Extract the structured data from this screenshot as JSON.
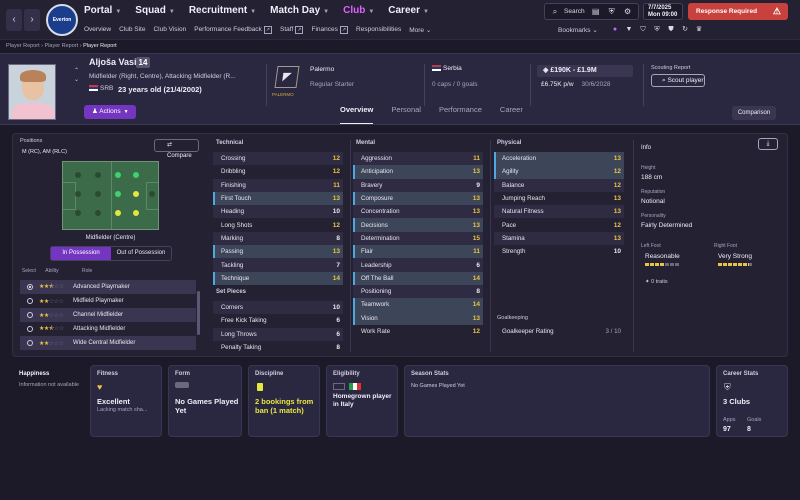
{
  "nav": {
    "menu": [
      {
        "label": "Portal",
        "active": false
      },
      {
        "label": "Squad",
        "active": false
      },
      {
        "label": "Recruitment",
        "active": false
      },
      {
        "label": "Match Day",
        "active": false
      },
      {
        "label": "Club",
        "active": true
      },
      {
        "label": "Career",
        "active": false
      }
    ],
    "submenu": [
      "Overview",
      "Club Site",
      "Club Vision",
      "Performance Feedback",
      "Staff",
      "Finances",
      "Responsibilities",
      "More"
    ],
    "search_label": "Search",
    "date_line1": "7/7/2025",
    "date_line2": "Mon  09:00",
    "response_required": "Response Required",
    "bookmarks": "Bookmarks",
    "crest_text": "Everton"
  },
  "breadcrumb": [
    "Player Report",
    "Player Report",
    "Player Report"
  ],
  "player": {
    "name": "Aljoša Vasić",
    "number": "14",
    "positions": "Midfielder (Right, Centre), Attacking Midfielder (R...",
    "nationality_code": "SRB",
    "age": "23 years old (21/4/2002)",
    "actions_label": "Actions"
  },
  "club": {
    "name": "Palermo",
    "logo_text": "PALERMO",
    "status": "Regular Starter"
  },
  "nation": {
    "name": "Serbia",
    "caps": "0 caps / 0 goals"
  },
  "contract": {
    "value": "£190K - £1.9M",
    "wage": "£6.75K p/w",
    "expires": "30/6/2028"
  },
  "scouting": {
    "label": "Scouting Report",
    "button": "Scout player"
  },
  "tabs": [
    {
      "label": "Overview",
      "active": true
    },
    {
      "label": "Personal",
      "active": false
    },
    {
      "label": "Performance",
      "active": false
    },
    {
      "label": "Career",
      "active": false
    }
  ],
  "comparison_label": "Comparison",
  "positions_panel": {
    "title": "Positions",
    "roles": "M (RC), AM (RLC)",
    "compare_label": "Compare",
    "position_label": "Midfielder (Centre)",
    "in_possession": "In Possession",
    "out_of_possession": "Out of Possession",
    "headers": [
      "Select",
      "Ability",
      "Role"
    ],
    "role_list": [
      {
        "name": "Advanced Playmaker",
        "stars": 2.5,
        "selected": true
      },
      {
        "name": "Midfield Playmaker",
        "stars": 2,
        "selected": false
      },
      {
        "name": "Channel Midfielder",
        "stars": 2,
        "selected": false
      },
      {
        "name": "Attacking Midfielder",
        "stars": 2.5,
        "selected": false
      },
      {
        "name": "Wide Central Midfielder",
        "stars": 2,
        "selected": false
      }
    ],
    "dots": {
      "green_strong": "#3fd16b",
      "green_natural": "#3fd16b",
      "yellow": "#e4e640",
      "unused": "#2c4a33"
    }
  },
  "attributes": {
    "technical_title": "Technical",
    "technical": [
      {
        "name": "Crossing",
        "value": 12,
        "key": false
      },
      {
        "name": "Dribbling",
        "value": 12,
        "key": false
      },
      {
        "name": "Finishing",
        "value": 11,
        "key": false
      },
      {
        "name": "First Touch",
        "value": 13,
        "key": true
      },
      {
        "name": "Heading",
        "value": 10,
        "key": false
      },
      {
        "name": "Long Shots",
        "value": 12,
        "key": false
      },
      {
        "name": "Marking",
        "value": 8,
        "key": false
      },
      {
        "name": "Passing",
        "value": 13,
        "key": true
      },
      {
        "name": "Tackling",
        "value": 7,
        "key": false
      },
      {
        "name": "Technique",
        "value": 14,
        "key": true
      }
    ],
    "set_pieces_title": "Set Pieces",
    "set_pieces": [
      {
        "name": "Corners",
        "value": 10,
        "key": false
      },
      {
        "name": "Free Kick Taking",
        "value": 6,
        "key": false
      },
      {
        "name": "Long Throws",
        "value": 6,
        "key": false
      },
      {
        "name": "Penalty Taking",
        "value": 8,
        "key": false
      }
    ],
    "mental_title": "Mental",
    "mental": [
      {
        "name": "Aggression",
        "value": 11,
        "key": false
      },
      {
        "name": "Anticipation",
        "value": 13,
        "key": true
      },
      {
        "name": "Bravery",
        "value": 9,
        "key": false
      },
      {
        "name": "Composure",
        "value": 13,
        "key": true
      },
      {
        "name": "Concentration",
        "value": 13,
        "key": false
      },
      {
        "name": "Decisions",
        "value": 13,
        "key": true
      },
      {
        "name": "Determination",
        "value": 15,
        "key": false
      },
      {
        "name": "Flair",
        "value": 11,
        "key": true
      },
      {
        "name": "Leadership",
        "value": 6,
        "key": false
      },
      {
        "name": "Off The Ball",
        "value": 14,
        "key": true
      },
      {
        "name": "Positioning",
        "value": 8,
        "key": false
      },
      {
        "name": "Teamwork",
        "value": 14,
        "key": true
      },
      {
        "name": "Vision",
        "value": 13,
        "key": true
      },
      {
        "name": "Work Rate",
        "value": 12,
        "key": false
      }
    ],
    "physical_title": "Physical",
    "physical": [
      {
        "name": "Acceleration",
        "value": 13,
        "key": true
      },
      {
        "name": "Agility",
        "value": 12,
        "key": true
      },
      {
        "name": "Balance",
        "value": 12,
        "key": false
      },
      {
        "name": "Jumping Reach",
        "value": 13,
        "key": false
      },
      {
        "name": "Natural Fitness",
        "value": 13,
        "key": false
      },
      {
        "name": "Pace",
        "value": 12,
        "key": false
      },
      {
        "name": "Stamina",
        "value": 13,
        "key": false
      },
      {
        "name": "Strength",
        "value": 10,
        "key": false
      }
    ],
    "goalkeeping_title": "Goalkeeping",
    "goalkeeping_label": "Goalkeeper Rating",
    "goalkeeping_value": "3 / 10"
  },
  "info": {
    "title": "Info",
    "height_label": "Height",
    "height": "188 cm",
    "reputation_label": "Reputation",
    "reputation": "Notional",
    "personality_label": "Personality",
    "personality": "Fairly Determined",
    "left_foot_label": "Left Foot",
    "left_foot": "Reasonable",
    "left_foot_level": 0.6,
    "right_foot_label": "Right Foot",
    "right_foot": "Very Strong",
    "right_foot_level": 0.9,
    "traits": "0 traits"
  },
  "cards": {
    "happiness_title": "Happiness",
    "happiness_text": "Information not available",
    "fitness_title": "Fitness",
    "fitness_value": "Excellent",
    "fitness_sub": "Lacking match sha...",
    "form_title": "Form",
    "form_value": "No Games Played Yet",
    "discipline_title": "Discipline",
    "discipline_value": "2 bookings from ban (1 match)",
    "eligibility_title": "Eligibility",
    "eligibility_value": "Homegrown player in Italy",
    "season_title": "Season Stats",
    "season_value": "No Games Played Yet",
    "career_title": "Career Stats",
    "career_clubs": "3 Clubs",
    "apps_label": "Apps",
    "apps_value": "97",
    "goals_label": "Goals",
    "goals_value": "8"
  },
  "colors": {
    "accent": "#7436c0",
    "alert": "#c8413c",
    "gold": "#e8c347"
  }
}
